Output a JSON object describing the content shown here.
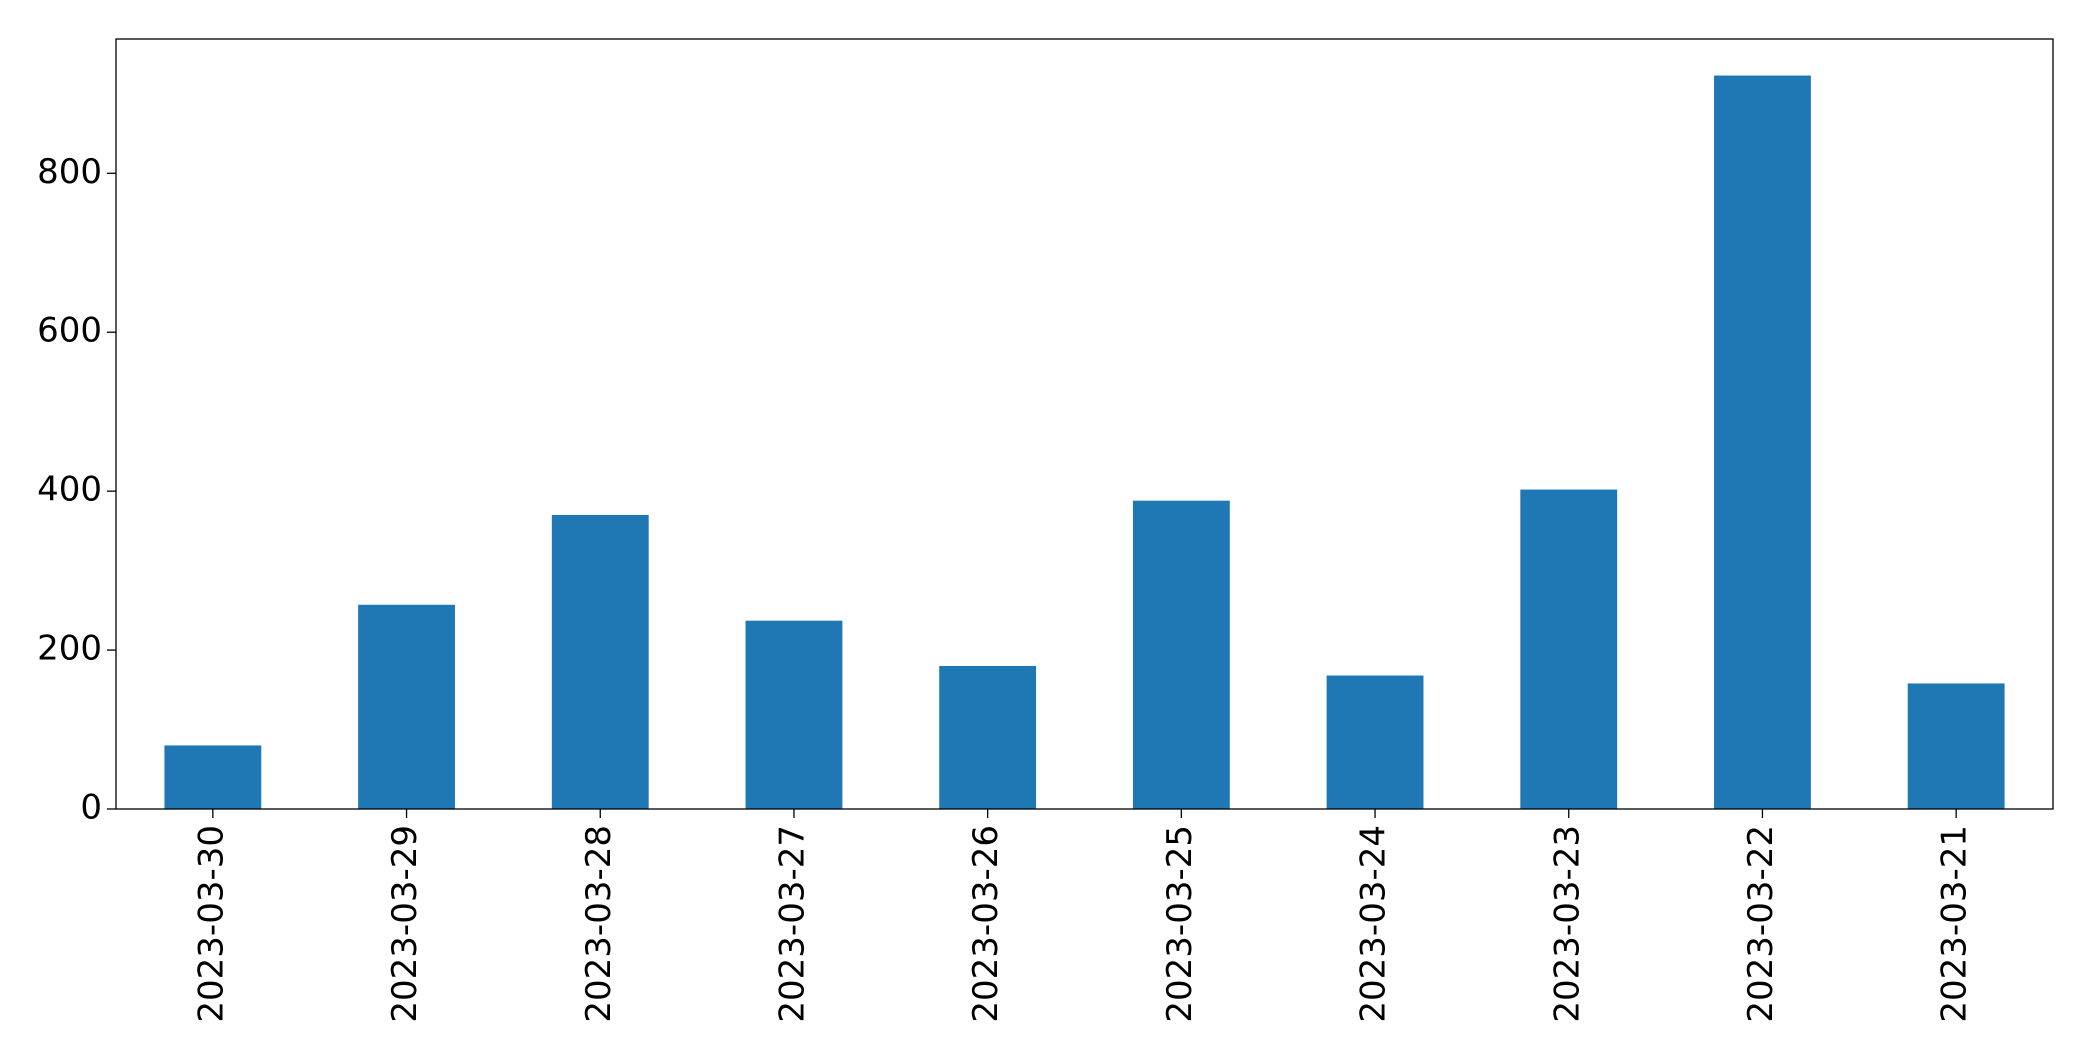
{
  "chart_data": {
    "type": "bar",
    "categories": [
      "2023-03-30",
      "2023-03-29",
      "2023-03-28",
      "2023-03-27",
      "2023-03-26",
      "2023-03-25",
      "2023-03-24",
      "2023-03-23",
      "2023-03-22",
      "2023-03-21"
    ],
    "values": [
      80,
      257,
      370,
      237,
      180,
      388,
      168,
      402,
      923,
      158
    ],
    "color": "#1f77b4",
    "ylim": [
      0,
      969
    ],
    "yticks": [
      0,
      200,
      400,
      600,
      800
    ],
    "grid": false
  }
}
